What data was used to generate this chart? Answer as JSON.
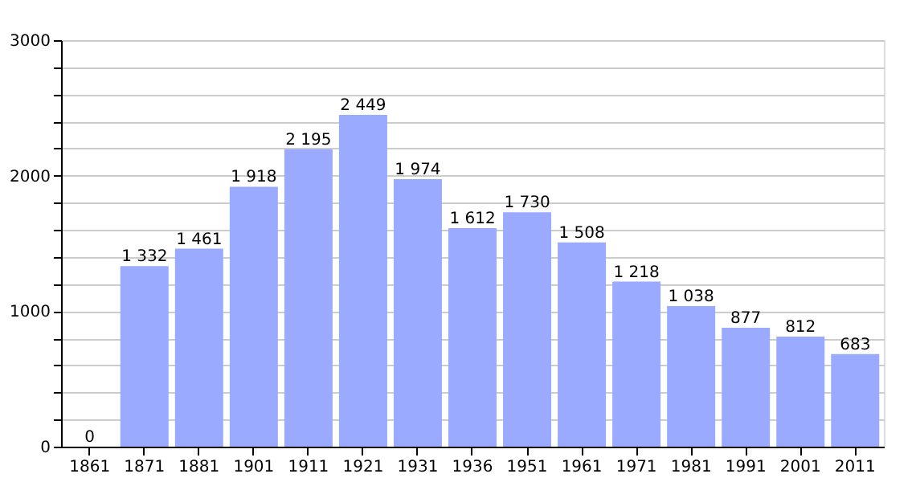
{
  "chart_data": {
    "type": "bar",
    "categories": [
      "1861",
      "1871",
      "1881",
      "1901",
      "1911",
      "1921",
      "1931",
      "1936",
      "1951",
      "1961",
      "1971",
      "1981",
      "1991",
      "2001",
      "2011"
    ],
    "values": [
      0,
      1332,
      1461,
      1918,
      2195,
      2449,
      1974,
      1612,
      1730,
      1508,
      1218,
      1038,
      877,
      812,
      683
    ],
    "value_labels": [
      "0",
      "1 332",
      "1 461",
      "1 918",
      "2 195",
      "2 449",
      "1 974",
      "1 612",
      "1 730",
      "1 508",
      "1 218",
      "1 038",
      "877",
      "812",
      "683"
    ],
    "color": "#99aaff",
    "ylim": [
      0,
      3000
    ],
    "yticks": [
      0,
      {
        "value": 200,
        "label": null
      },
      {
        "value": 400,
        "label": null
      },
      {
        "value": 600,
        "label": null
      },
      {
        "value": 800,
        "label": null
      },
      1000,
      {
        "value": 1200,
        "label": null
      },
      {
        "value": 1400,
        "label": null
      },
      {
        "value": 1600,
        "label": null
      },
      {
        "value": 1800,
        "label": null
      },
      2000,
      {
        "value": 2200,
        "label": null
      },
      {
        "value": 2400,
        "label": null
      },
      {
        "value": 2600,
        "label": null
      },
      {
        "value": 2800,
        "label": null
      },
      3000
    ],
    "grid": "y"
  }
}
